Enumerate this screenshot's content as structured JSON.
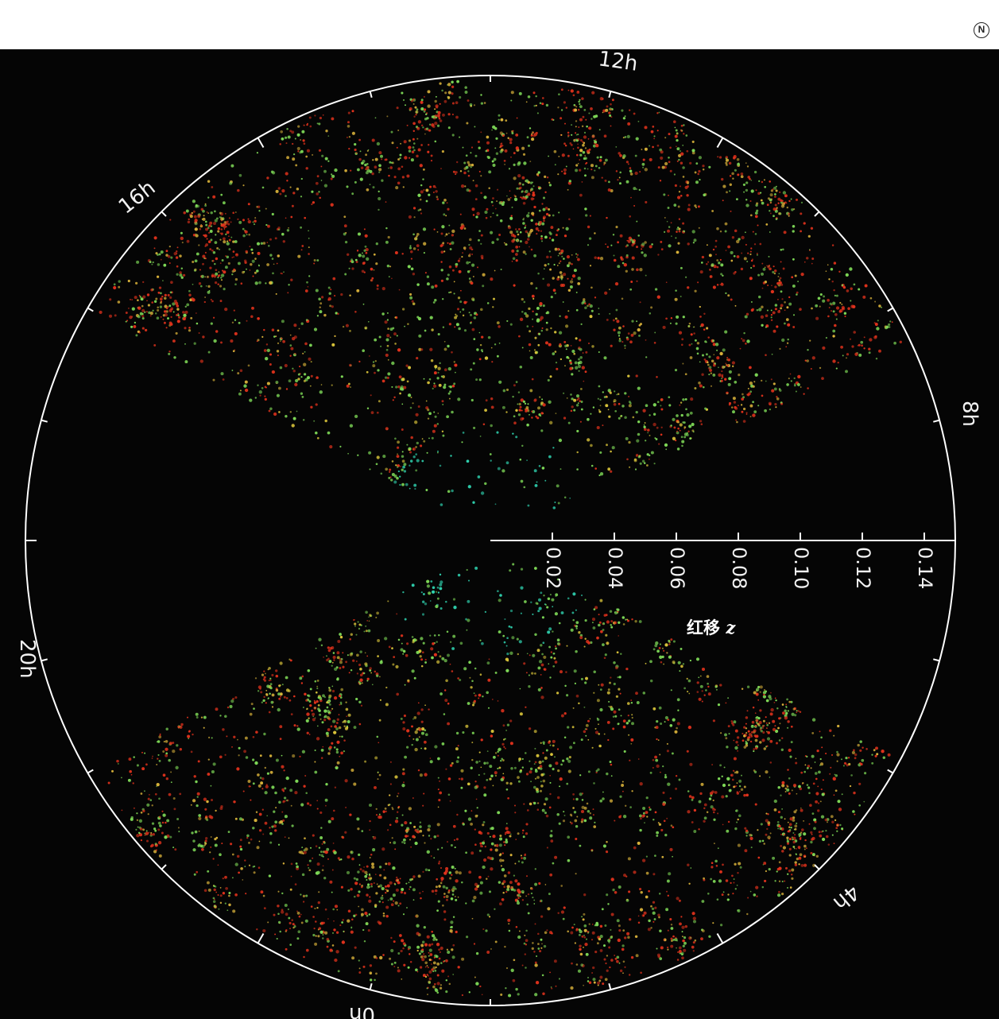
{
  "corner_mark": "N",
  "hour_labels": [
    "12h",
    "16h",
    "8h",
    "20h",
    "4h",
    "0h"
  ],
  "redshift_ticks": [
    "0.02",
    "0.04",
    "0.06",
    "0.08",
    "0.10",
    "0.12",
    "0.14"
  ],
  "redshift_values": [
    0.02,
    0.04,
    0.06,
    0.08,
    0.1,
    0.12,
    0.14
  ],
  "axis_title_text": "红移",
  "axis_title_var": "z",
  "colors": {
    "background": "#050505",
    "circle": "#ffffff",
    "galaxy_near": "#2fd3b0",
    "galaxy_mid": "#7ed957",
    "galaxy_far": "#e0321c"
  }
}
